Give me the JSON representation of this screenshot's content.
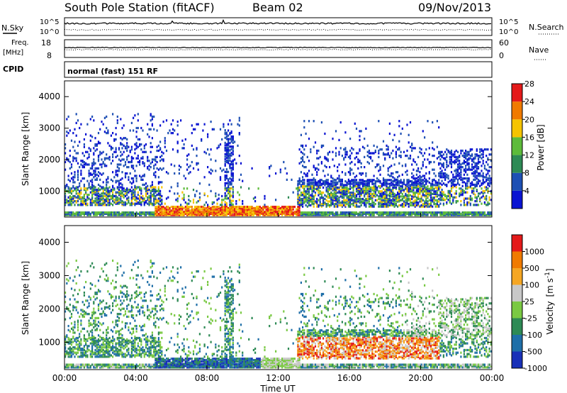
{
  "header": {
    "station": "South Pole Station (fitACF)",
    "beam": "Beam 02",
    "date": "09/Nov/2013"
  },
  "strip": {
    "nsky_label": "N.Sky",
    "freq_label_1": "Freq.",
    "freq_label_2": "[MHz]",
    "cpid_label": "CPID",
    "nsearch_label": "N.Search",
    "nave_label": "Nave",
    "left_tick_top": "10^5",
    "left_tick_bottom": "10^0",
    "right_tick_top": "10^5",
    "right_tick_bottom": "10^0",
    "freq_tick_top": "18",
    "freq_tick_bottom": "8",
    "nave_tick_top": "60",
    "nave_tick_bottom": "0",
    "cpid_text": "normal (fast) 151 RF"
  },
  "chart_data": [
    {
      "type": "heatmap",
      "panel": "power",
      "ylabel": "Slant Range [km]",
      "yticks": [
        "1000",
        "2000",
        "3000",
        "4000"
      ],
      "ylim": [
        180,
        4500
      ],
      "colorbar": {
        "label": "Power [dB]",
        "ticks": [
          "4",
          "8",
          "12",
          "16",
          "20",
          "24",
          "28"
        ],
        "colors": [
          "#0a14d2",
          "#1e50b4",
          "#2e8a55",
          "#5dbb3a",
          "#f5c400",
          "#f07a00",
          "#e41a1a"
        ]
      }
    },
    {
      "type": "heatmap",
      "panel": "velocity",
      "ylabel": "Slant Range [km]",
      "yticks": [
        "1000",
        "2000",
        "3000",
        "4000"
      ],
      "ylim": [
        180,
        4500
      ],
      "xlabel": "Time UT",
      "xticks": [
        "00:00",
        "04:00",
        "08:00",
        "12:00",
        "16:00",
        "20:00",
        "00:00"
      ],
      "colorbar": {
        "label_main": "Velocity",
        "label_unit": "[m s",
        "label_exp": "-1",
        "label_close": "]",
        "ticks": [
          "1000",
          "500",
          "100",
          "25",
          "-25",
          "-100",
          "-500",
          "-1000"
        ],
        "colors": [
          "#1830b8",
          "#1f6fa8",
          "#2e8a55",
          "#7ac943",
          "#c8c8c8",
          "#f5a623",
          "#f07a00",
          "#e41a1a"
        ]
      }
    }
  ]
}
